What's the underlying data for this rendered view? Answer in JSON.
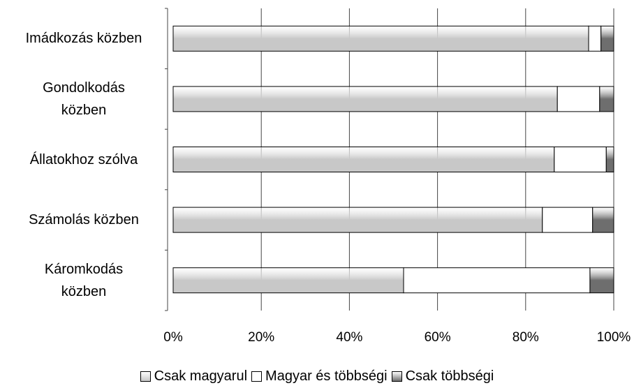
{
  "chart_data": {
    "type": "bar",
    "orientation": "horizontal",
    "stacked": true,
    "categories": [
      "Imádkozás közben",
      "Gondolkodás\nközben",
      "Állatokhoz szólva",
      "Számolás közben",
      "Káromkodás\nközben"
    ],
    "series": [
      {
        "name": "Csak magyarul",
        "color": "#c8c8c8",
        "values": [
          94.3,
          87.2,
          86.5,
          83.8,
          52.3
        ]
      },
      {
        "name": "Magyar és többségi",
        "color": "#ffffff",
        "values": [
          2.8,
          9.6,
          11.8,
          11.4,
          42.3
        ]
      },
      {
        "name": "Csak többségi",
        "color": "#6e6e6e",
        "values": [
          2.9,
          3.2,
          1.7,
          4.8,
          5.4
        ]
      }
    ],
    "xlim": [
      0,
      100
    ],
    "xticks": [
      {
        "value": 0,
        "label": "0%"
      },
      {
        "value": 20,
        "label": "20%"
      },
      {
        "value": 40,
        "label": "40%"
      },
      {
        "value": 60,
        "label": "60%"
      },
      {
        "value": 80,
        "label": "80%"
      },
      {
        "value": 100,
        "label": "100%"
      }
    ],
    "grid": true,
    "legend": "bottom"
  }
}
